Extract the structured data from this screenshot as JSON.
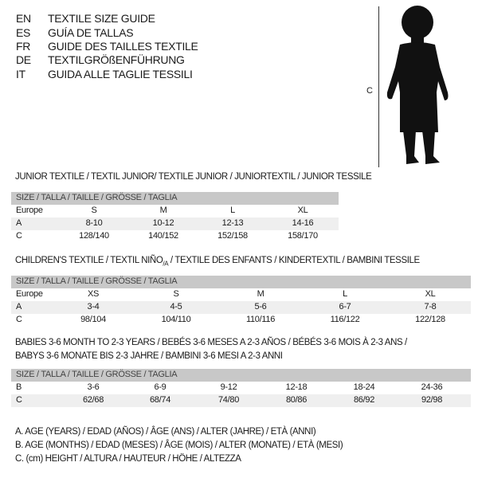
{
  "languages": [
    {
      "code": "EN",
      "title": "TEXTILE SIZE GUIDE"
    },
    {
      "code": "ES",
      "title": "GUÍA DE TALLAS"
    },
    {
      "code": "FR",
      "title": "GUIDE DES TAILLES TEXTILE"
    },
    {
      "code": "DE",
      "title": "TEXTILGRÖßENFÜHRUNG"
    },
    {
      "code": "IT",
      "title": "GUIDA ALLE TAGLIE TESSILI"
    }
  ],
  "figure": {
    "label": "C"
  },
  "size_header": "SIZE / TALLA / TAILLE / GRÖSSE / TAGLIA",
  "junior": {
    "title": "JUNIOR TEXTILE / TEXTIL JUNIOR/ TEXTILE JUNIOR / JUNIORTEXTIL / JUNIOR TESSILE",
    "rows": [
      {
        "label": "Europe",
        "values": [
          "S",
          "M",
          "L",
          "XL"
        ]
      },
      {
        "label": "A",
        "values": [
          "8-10",
          "10-12",
          "12-13",
          "14-16"
        ]
      },
      {
        "label": "C",
        "values": [
          "128/140",
          "140/152",
          "152/158",
          "158/170"
        ]
      }
    ]
  },
  "children": {
    "title_a": "CHILDREN'S TEXTILE / TEXTIL NIÑO",
    "title_sub": "/A",
    "title_b": " / TEXTILE DES ENFANTS / KINDERTEXTIL / BAMBINI TESSILE",
    "rows": [
      {
        "label": "Europe",
        "values": [
          "XS",
          "S",
          "M",
          "L",
          "XL"
        ]
      },
      {
        "label": "A",
        "values": [
          "3-4",
          "4-5",
          "5-6",
          "6-7",
          "7-8"
        ]
      },
      {
        "label": "C",
        "values": [
          "98/104",
          "104/110",
          "110/116",
          "116/122",
          "122/128"
        ]
      }
    ]
  },
  "babies": {
    "title_line1": "BABIES 3-6 MONTH TO 2-3 YEARS / BEBÉS 3-6 MESES A 2-3 AÑOS / BÉBÉS 3-6 MOIS À 2-3 ANS /",
    "title_line2": "BABYS 3-6 MONATE BIS 2-3 JAHRE / BAMBINI 3-6 MESI A 2-3 ANNI",
    "rows": [
      {
        "label": "B",
        "values": [
          "3-6",
          "6-9",
          "9-12",
          "12-18",
          "18-24",
          "24-36"
        ]
      },
      {
        "label": "C",
        "values": [
          "62/68",
          "68/74",
          "74/80",
          "80/86",
          "86/92",
          "92/98"
        ]
      }
    ]
  },
  "legend": [
    "A. AGE (YEARS) / EDAD (AÑOS) / ÂGE (ANS) / ALTER (JAHRE) / ETÀ (ANNI)",
    "B. AGE (MONTHS) / EDAD (MESES) / ÂGE (MOIS) / ALTER (MONATE) / ETÀ (MESI)",
    "C. (cm) HEIGHT / ALTURA / HAUTEUR / HÖHE / ALTEZZA"
  ]
}
